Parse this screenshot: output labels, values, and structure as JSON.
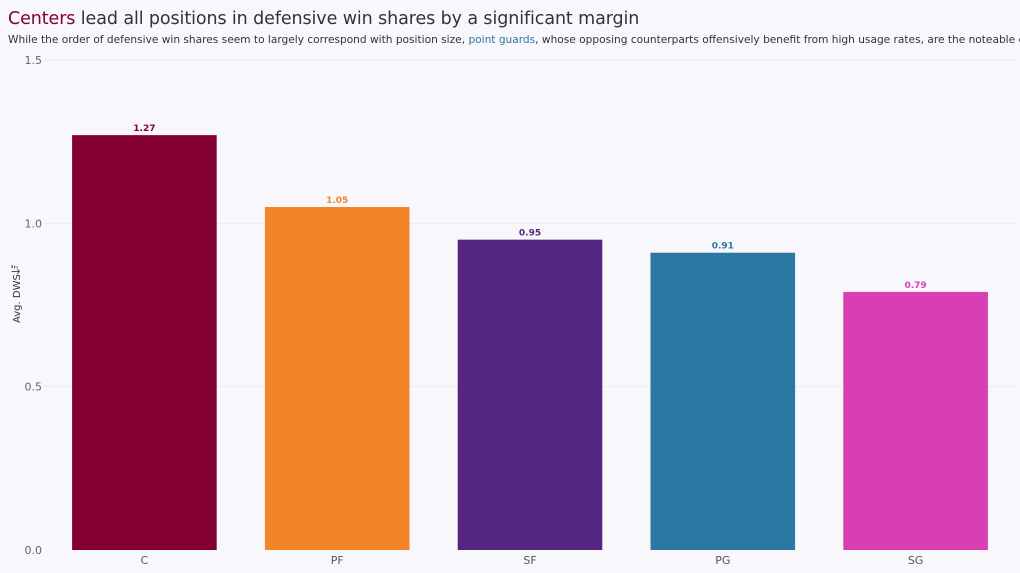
{
  "header": {
    "title_highlight": "Centers",
    "title_rest": " lead all positions in defensive win shares by a significant margin",
    "subtitle_before": "While the order of defensive win shares seem to largely correspond with position size, ",
    "subtitle_highlight": "point guards",
    "subtitle_after": ", whose opposing counterparts offensively benefit from high usage rates, are the noteable exception"
  },
  "colors": {
    "title_accent": "#840033",
    "subtitle_accent": "#2b79a3",
    "background": "#f8f7fc",
    "gridline": "#ecebf2"
  },
  "chart_data": {
    "type": "bar",
    "title": "Centers lead all positions in defensive win shares by a significant margin",
    "categories": [
      "C",
      "PF",
      "SF",
      "PG",
      "SG"
    ],
    "values": [
      1.27,
      1.05,
      0.95,
      0.91,
      0.79
    ],
    "value_labels": [
      "1.27",
      "1.05",
      "0.95",
      "0.91",
      "0.79"
    ],
    "colors": [
      "#840033",
      "#f28526",
      "#552582",
      "#2b79a3",
      "#d93fb2"
    ],
    "ylabel": "Avg. DWS",
    "sort_icon": "sort-descending-icon",
    "ylim": [
      0,
      1.5
    ],
    "yticks": [
      0.0,
      0.5,
      1.0,
      1.5
    ],
    "ytick_labels": [
      "0.0",
      "0.5",
      "1.0",
      "1.5"
    ],
    "grid": true
  }
}
